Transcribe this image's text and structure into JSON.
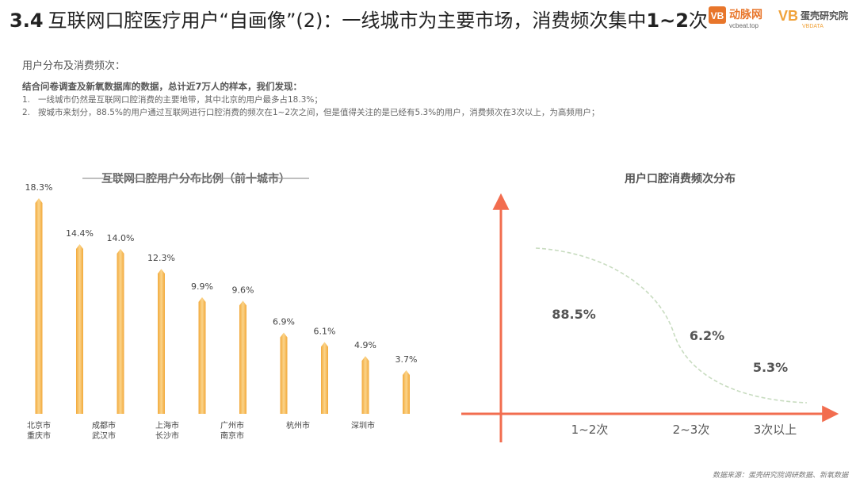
{
  "header": {
    "num": "3.4",
    "title_main": "互联网口腔医疗用户“自画像”(2)：一线城市为主要市场，消费频次集中",
    "title_strong": "1~2",
    "title_end": "次"
  },
  "logos": {
    "logo1_mark": "VB",
    "logo1_name": "动脉网",
    "logo1_url": "vcbeat.top",
    "logo2_mark": "VB",
    "logo2_name": "蛋壳研究院",
    "logo2_sub": "VBDATA"
  },
  "section_label": "用户分布及消费频次：",
  "intro": "结合问卷调查及新氧数据库的数据，总计近7万人的样本，我们发现：",
  "findings": [
    {
      "idx": "1.",
      "text": "一线城市仍然是互联网口腔消费的主要地带，其中北京的用户最多占18.3%；"
    },
    {
      "idx": "2.",
      "text": "按城市来划分，88.5%的用户通过互联网进行口腔消费的频次在1~2次之间，但是值得关注的是已经有5.3%的用户，消费频次在3次以上，为高频用户；"
    }
  ],
  "source": "数据来源：蛋壳研究院调研数据、新氧数据",
  "chart_data": [
    {
      "type": "bar",
      "title": "互联网口腔用户分布比例（前十城市）",
      "categories": [
        "北京市",
        "重庆市",
        "成都市",
        "武汉市",
        "上海市",
        "长沙市",
        "广州市",
        "南京市",
        "杭州市",
        "深圳市"
      ],
      "values": [
        18.3,
        14.4,
        14.0,
        12.3,
        9.9,
        9.6,
        6.9,
        6.1,
        4.9,
        3.7
      ],
      "data_labels": [
        "18.3%",
        "14.4%",
        "14.0%",
        "12.3%",
        "9.9%",
        "9.6%",
        "6.9%",
        "6.1%",
        "4.9%",
        "3.7%"
      ],
      "label_groups": [
        {
          "top": "北京市",
          "bottom": "重庆市"
        },
        {
          "top": "成都市",
          "bottom": "武汉市"
        },
        {
          "top": "上海市",
          "bottom": "长沙市"
        },
        {
          "top": "广州市",
          "bottom": "南京市"
        },
        {
          "top": "杭州市",
          "bottom": ""
        },
        {
          "top": "深圳市",
          "bottom": ""
        }
      ],
      "bar_color": "#f2a93b",
      "bar_color_light": "#fbd48a"
    },
    {
      "type": "line",
      "title": "用户口腔消费频次分布",
      "categories": [
        "1~2次",
        "2~3次",
        "3次以上"
      ],
      "values": [
        88.5,
        6.2,
        5.3
      ],
      "data_labels": [
        "88.5%",
        "6.2%",
        "5.3%"
      ],
      "axis_color": "#f26d4f",
      "curve_color": "#c8dcc0"
    }
  ]
}
